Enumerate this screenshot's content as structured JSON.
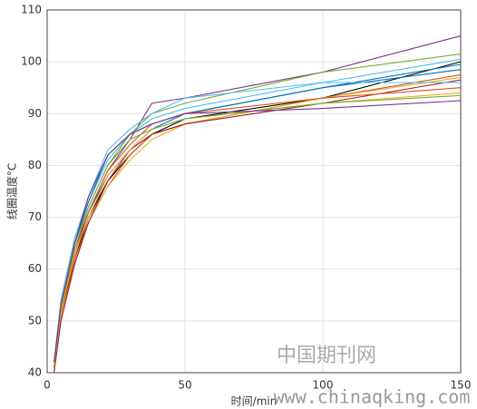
{
  "chart_data": {
    "type": "line",
    "xlabel": "时间/min",
    "ylabel": "线圈温度°C",
    "annotations": [
      "中国期刊网",
      "www.chinaqking.com"
    ],
    "x": [
      2.5,
      5,
      10,
      15,
      22,
      30,
      38,
      50,
      100,
      150
    ],
    "xlim": [
      0,
      150
    ],
    "xticks": [
      0,
      50,
      100,
      150
    ],
    "ylim": [
      40,
      110
    ],
    "yticks": [
      40,
      50,
      60,
      70,
      80,
      90,
      100,
      110
    ],
    "grid": true,
    "series": [
      {
        "color": "#7e2f8e",
        "values": [
          41,
          52,
          64,
          71,
          79,
          85,
          92,
          93,
          98,
          105
        ]
      },
      {
        "color": "#77ac30",
        "values": [
          41,
          53,
          65,
          72,
          80,
          86,
          90,
          92,
          98,
          101.5
        ]
      },
      {
        "color": "#4dbeee",
        "values": [
          42,
          54,
          66,
          73,
          81,
          86,
          89,
          91,
          96,
          100.5
        ]
      },
      {
        "color": "#000000",
        "values": [
          41,
          51,
          62,
          70,
          77,
          82,
          86,
          89,
          93,
          100
        ]
      },
      {
        "color": "#0072bd",
        "values": [
          41,
          52,
          63,
          71,
          78,
          83,
          87,
          90,
          95,
          99.5
        ]
      },
      {
        "color": "#0072bd",
        "values": [
          42,
          53,
          65,
          73,
          82,
          86,
          88,
          90,
          95,
          98.5
        ]
      },
      {
        "color": "#d95319",
        "values": [
          41,
          52,
          62,
          69,
          76,
          82,
          86,
          88,
          93,
          97.5
        ]
      },
      {
        "color": "#edb120",
        "values": [
          41,
          51,
          61,
          69,
          76,
          81,
          85,
          88,
          93,
          97
        ]
      },
      {
        "color": "#a2142f",
        "values": [
          40,
          50,
          61,
          69,
          77,
          83,
          86,
          88,
          92,
          96.5
        ]
      },
      {
        "color": "#4dbeee",
        "values": [
          42,
          54,
          66,
          74,
          83,
          87,
          90,
          93,
          96,
          96
        ]
      },
      {
        "color": "#d95319",
        "values": [
          41,
          52,
          63,
          71,
          79,
          84,
          88,
          90,
          93,
          95
        ]
      },
      {
        "color": "#edb120",
        "values": [
          41,
          52,
          63,
          70,
          78,
          83,
          87,
          89,
          92,
          94
        ]
      },
      {
        "color": "#77ac30",
        "values": [
          41,
          53,
          64,
          72,
          80,
          85,
          87,
          89,
          92,
          93.5
        ]
      },
      {
        "color": "#7e2f8e",
        "values": [
          42,
          53,
          65,
          74,
          82,
          86,
          88,
          90,
          91,
          92.5
        ]
      }
    ]
  }
}
